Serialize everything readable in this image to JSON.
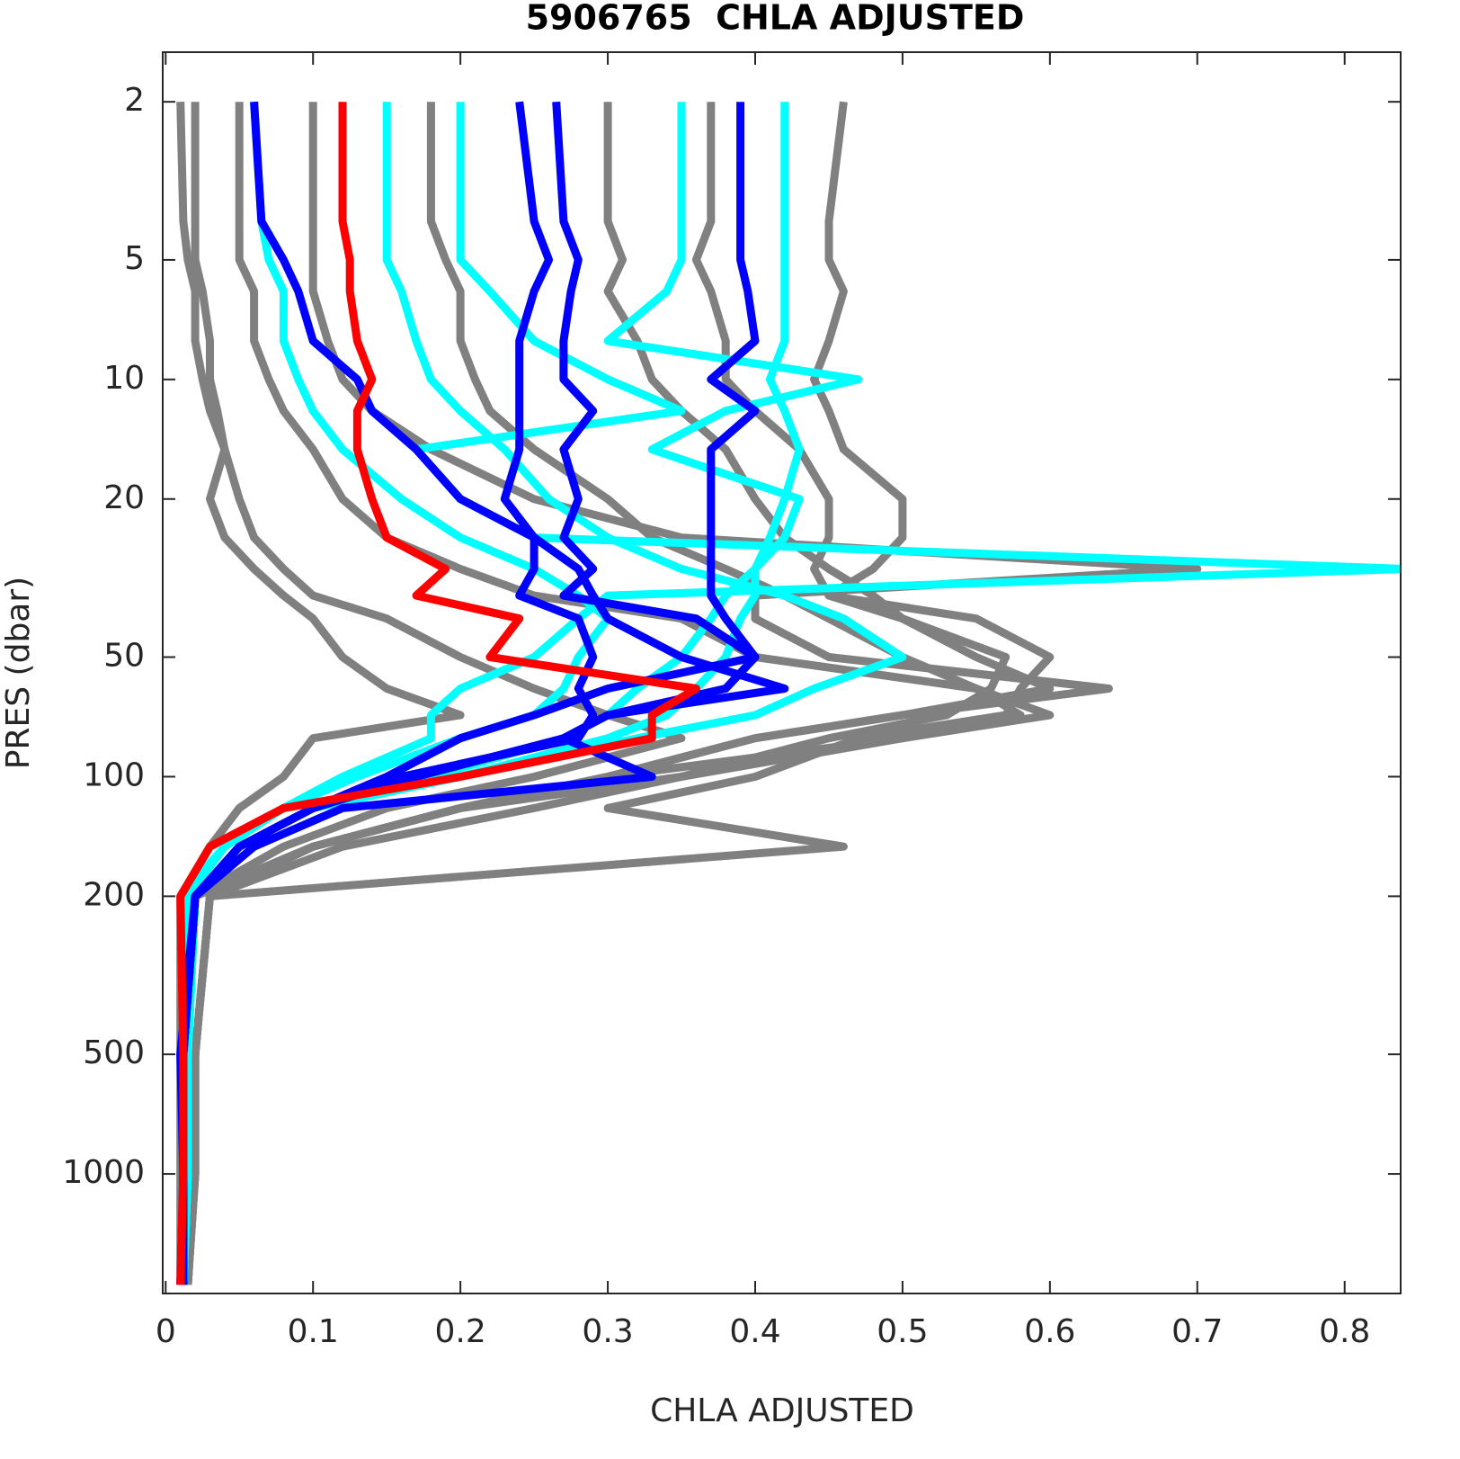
{
  "chart_data": {
    "type": "profile",
    "title": "5906765  CHLA ADJUSTED",
    "x_label": "CHLA ADJUSTED",
    "y_label": "PRES (dbar)",
    "xlim": [
      -0.002,
      0.838
    ],
    "xticks": [
      0,
      0.1,
      0.2,
      0.3,
      0.4,
      0.5,
      0.6,
      0.7,
      0.8
    ],
    "ylim": [
      1.5,
      2000
    ],
    "yticks": [
      2,
      5,
      10,
      20,
      50,
      100,
      200,
      500,
      1000
    ],
    "y_scale": "log",
    "y_reversed": true,
    "grid": false,
    "y": [
      2,
      4,
      5,
      6,
      8,
      10,
      12,
      15,
      20,
      25,
      30,
      35,
      40,
      50,
      60,
      70,
      80,
      100,
      120,
      150,
      200,
      500,
      1000,
      1900
    ],
    "series": [
      {
        "color": "#808080",
        "values": [
          0.01,
          0.012,
          0.015,
          0.02,
          0.02,
          0.025,
          0.03,
          0.04,
          0.05,
          0.06,
          0.08,
          0.1,
          0.15,
          0.2,
          0.25,
          0.3,
          0.35,
          0.25,
          0.15,
          0.08,
          0.02,
          0.015,
          0.015,
          0.012
        ]
      },
      {
        "color": "#808080",
        "values": [
          0.05,
          0.05,
          0.05,
          0.06,
          0.06,
          0.07,
          0.08,
          0.1,
          0.12,
          0.15,
          0.2,
          0.25,
          0.35,
          0.4,
          0.55,
          0.58,
          0.5,
          0.3,
          0.2,
          0.1,
          0.03,
          0.02,
          0.02,
          0.015
        ]
      },
      {
        "color": "#808080",
        "values": [
          0.1,
          0.1,
          0.1,
          0.1,
          0.11,
          0.12,
          0.14,
          0.18,
          0.25,
          0.35,
          0.7,
          0.4,
          0.4,
          0.45,
          0.64,
          0.5,
          0.4,
          0.3,
          0.2,
          0.1,
          0.03,
          0.02,
          0.02,
          0.015
        ]
      },
      {
        "color": "#808080",
        "values": [
          0.46,
          0.45,
          0.45,
          0.46,
          0.45,
          0.44,
          0.45,
          0.46,
          0.5,
          0.5,
          0.48,
          0.45,
          0.55,
          0.6,
          0.58,
          0.57,
          0.47,
          0.4,
          0.3,
          0.46,
          0.03,
          0.02,
          0.02,
          0.015
        ]
      },
      {
        "color": "#808080",
        "values": [
          0.3,
          0.3,
          0.31,
          0.3,
          0.32,
          0.33,
          0.35,
          0.38,
          0.4,
          0.42,
          0.45,
          0.48,
          0.5,
          0.55,
          0.6,
          0.5,
          0.4,
          0.3,
          0.2,
          0.1,
          0.02,
          0.015,
          0.015,
          0.012
        ]
      },
      {
        "color": "#808080",
        "values": [
          0.02,
          0.02,
          0.02,
          0.025,
          0.03,
          0.03,
          0.035,
          0.04,
          0.03,
          0.04,
          0.06,
          0.08,
          0.1,
          0.12,
          0.15,
          0.2,
          0.1,
          0.08,
          0.05,
          0.03,
          0.01,
          0.01,
          0.01,
          0.01
        ]
      },
      {
        "color": "#808080",
        "values": [
          0.18,
          0.18,
          0.19,
          0.2,
          0.2,
          0.21,
          0.22,
          0.25,
          0.3,
          0.33,
          0.38,
          0.42,
          0.45,
          0.5,
          0.55,
          0.6,
          0.5,
          0.35,
          0.25,
          0.12,
          0.03,
          0.02,
          0.02,
          0.015
        ]
      },
      {
        "color": "#808080",
        "values": [
          0.37,
          0.37,
          0.36,
          0.37,
          0.38,
          0.38,
          0.4,
          0.43,
          0.45,
          0.45,
          0.44,
          0.45,
          0.5,
          0.57,
          0.56,
          0.53,
          0.45,
          0.35,
          0.2,
          0.1,
          0.02,
          0.015,
          0.015,
          0.012
        ]
      },
      {
        "color": "#00ffff",
        "values": [
          0.06,
          0.065,
          0.07,
          0.08,
          0.08,
          0.09,
          0.1,
          0.12,
          0.16,
          0.2,
          0.25,
          0.28,
          0.3,
          0.28,
          0.27,
          0.25,
          0.2,
          0.13,
          0.08,
          0.04,
          0.01,
          0.015,
          0.015,
          0.012
        ]
      },
      {
        "color": "#00ffff",
        "values": [
          0.15,
          0.15,
          0.15,
          0.16,
          0.17,
          0.18,
          0.2,
          0.23,
          0.26,
          0.3,
          0.35,
          0.42,
          0.46,
          0.5,
          0.44,
          0.4,
          0.32,
          0.2,
          0.1,
          0.05,
          0.02,
          0.015,
          0.015,
          0.012
        ]
      },
      {
        "color": "#00ffff",
        "values": [
          0.2,
          0.2,
          0.2,
          0.22,
          0.25,
          0.3,
          0.35,
          0.17,
          0.2,
          0.25,
          0.84,
          0.3,
          0.28,
          0.25,
          0.2,
          0.18,
          0.18,
          0.12,
          0.08,
          0.04,
          0.015,
          0.015,
          0.015,
          0.012
        ]
      },
      {
        "color": "#00ffff",
        "values": [
          0.35,
          0.35,
          0.35,
          0.34,
          0.3,
          0.47,
          0.38,
          0.33,
          0.43,
          0.42,
          0.4,
          0.38,
          0.37,
          0.35,
          0.32,
          0.3,
          0.27,
          0.18,
          0.1,
          0.05,
          0.02,
          0.015,
          0.015,
          0.012
        ]
      },
      {
        "color": "#00ffff",
        "values": [
          0.42,
          0.42,
          0.42,
          0.42,
          0.42,
          0.41,
          0.42,
          0.43,
          0.42,
          0.41,
          0.4,
          0.4,
          0.39,
          0.38,
          0.36,
          0.34,
          0.3,
          0.2,
          0.1,
          0.05,
          0.02,
          0.015,
          0.015,
          0.012
        ]
      },
      {
        "color": "#0000ff",
        "values": [
          0.06,
          0.065,
          0.08,
          0.09,
          0.1,
          0.13,
          0.14,
          0.17,
          0.2,
          0.25,
          0.28,
          0.29,
          0.3,
          0.35,
          0.42,
          0.3,
          0.27,
          0.33,
          0.12,
          0.06,
          0.02,
          0.01,
          0.012,
          0.01
        ]
      },
      {
        "color": "#0000ff",
        "values": [
          0.24,
          0.25,
          0.26,
          0.25,
          0.24,
          0.24,
          0.24,
          0.24,
          0.23,
          0.25,
          0.25,
          0.24,
          0.28,
          0.29,
          0.28,
          0.29,
          0.28,
          0.16,
          0.1,
          0.05,
          0.02,
          0.012,
          0.012,
          0.012
        ]
      },
      {
        "color": "#0000ff",
        "values": [
          0.265,
          0.27,
          0.28,
          0.275,
          0.27,
          0.27,
          0.29,
          0.27,
          0.28,
          0.27,
          0.29,
          0.27,
          0.36,
          0.4,
          0.3,
          0.25,
          0.2,
          0.15,
          0.1,
          0.05,
          0.02,
          0.012,
          0.012,
          0.012
        ]
      },
      {
        "color": "#0000ff",
        "values": [
          0.39,
          0.39,
          0.39,
          0.395,
          0.4,
          0.37,
          0.4,
          0.37,
          0.37,
          0.37,
          0.37,
          0.37,
          0.38,
          0.4,
          0.38,
          0.3,
          0.27,
          0.17,
          0.1,
          0.05,
          0.02,
          0.012,
          0.012,
          0.012
        ]
      },
      {
        "color": "#ff0000",
        "values": [
          0.12,
          0.12,
          0.125,
          0.125,
          0.13,
          0.14,
          0.13,
          0.13,
          0.14,
          0.15,
          0.19,
          0.17,
          0.24,
          0.22,
          0.36,
          0.33,
          0.33,
          0.2,
          0.08,
          0.03,
          0.01,
          0.012,
          0.012,
          0.01
        ]
      }
    ]
  }
}
